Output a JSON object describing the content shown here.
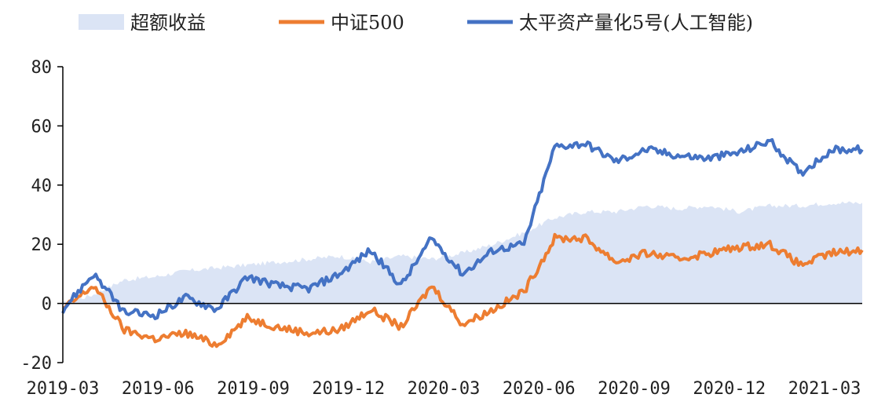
{
  "chart_data": {
    "type": "line",
    "title": "",
    "xlabel": "",
    "ylabel": "",
    "ylim": [
      -20,
      80
    ],
    "yticks": [
      -20,
      0,
      20,
      40,
      60,
      80
    ],
    "x_tick_labels": [
      "2019-03",
      "2019-06",
      "2019-09",
      "2019-12",
      "2020-03",
      "2020-06",
      "2020-09",
      "2020-12",
      "2021-03"
    ],
    "legend_position": "top",
    "grid": false,
    "x": [
      "2019-03",
      "2019-04",
      "2019-05",
      "2019-06",
      "2019-07",
      "2019-08",
      "2019-09",
      "2019-10",
      "2019-11",
      "2019-12",
      "2020-01",
      "2020-02",
      "2020-03",
      "2020-04",
      "2020-05",
      "2020-06",
      "2020-07",
      "2020-08",
      "2020-09",
      "2020-10",
      "2020-11",
      "2020-12",
      "2021-01",
      "2021-02",
      "2021-03",
      "2021-04",
      "2021-05"
    ],
    "series": [
      {
        "name": "超额收益",
        "kind": "area",
        "color": "#dbe4f5",
        "values": [
          0,
          3,
          8,
          9,
          11,
          12,
          13,
          14,
          15,
          16,
          14,
          16,
          15,
          17,
          20,
          24,
          29,
          31,
          31,
          33,
          32,
          33,
          31,
          33,
          33,
          34,
          34
        ]
      },
      {
        "name": "中证500",
        "kind": "line",
        "color": "#ed7d31",
        "values": [
          -2,
          6,
          -9,
          -12,
          -10,
          -14,
          -5,
          -8,
          -10,
          -9,
          -2,
          -8,
          6,
          -7,
          -2,
          4,
          22,
          22,
          14,
          17,
          15,
          17,
          19,
          20,
          13,
          17,
          18
        ]
      },
      {
        "name": "太平资产量化5号(人工智能)",
        "kind": "line",
        "color": "#4472c4",
        "values": [
          -2,
          10,
          -3,
          -4,
          2,
          -2,
          9,
          6,
          5,
          10,
          18,
          6,
          22,
          10,
          18,
          20,
          53,
          54,
          48,
          52,
          50,
          49,
          51,
          55,
          44,
          52,
          52
        ]
      }
    ]
  }
}
